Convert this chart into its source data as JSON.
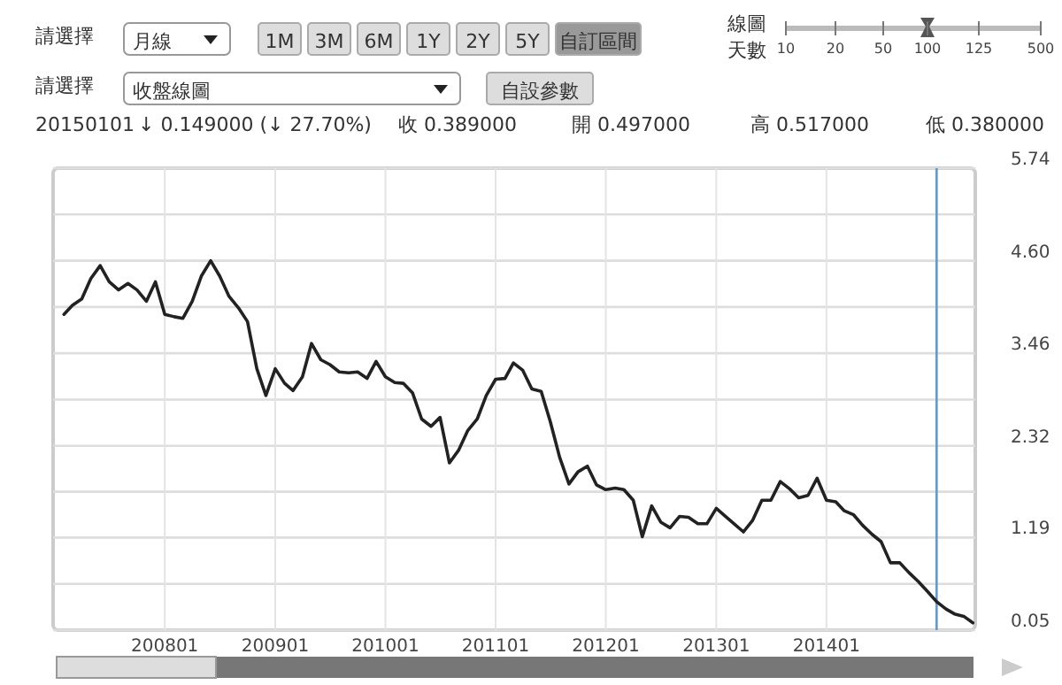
{
  "chart_data": {
    "type": "line",
    "annotations": [
      "請選擇",
      "月線",
      "1M",
      "3M",
      "6M",
      "1Y",
      "2Y",
      "5Y",
      "自訂區間",
      "線圖",
      "天數",
      "10",
      "20",
      "50",
      "100",
      "125",
      "500",
      "請選擇",
      "收盤線圖",
      "自設參數",
      "20150101",
      "↓ 0.149000 (↓ 27.70%)",
      "收 0.389000",
      "開 0.497000",
      "高 0.517000",
      "低 0.380000"
    ],
    "x": [
      "2007-02",
      "2007-03",
      "2007-04",
      "2007-05",
      "2007-06",
      "2007-07",
      "2007-08",
      "2007-09",
      "2007-10",
      "2007-11",
      "2007-12",
      "2008-01",
      "2008-02",
      "2008-03",
      "2008-04",
      "2008-05",
      "2008-06",
      "2008-07",
      "2008-08",
      "2008-09",
      "2008-10",
      "2008-11",
      "2008-12",
      "2009-01",
      "2009-02",
      "2009-03",
      "2009-04",
      "2009-05",
      "2009-06",
      "2009-07",
      "2009-08",
      "2009-09",
      "2009-10",
      "2009-11",
      "2009-12",
      "2010-01",
      "2010-02",
      "2010-03",
      "2010-04",
      "2010-05",
      "2010-06",
      "2010-07",
      "2010-08",
      "2010-09",
      "2010-10",
      "2010-11",
      "2010-12",
      "2011-01",
      "2011-02",
      "2011-03",
      "2011-04",
      "2011-05",
      "2011-06",
      "2011-07",
      "2011-08",
      "2011-09",
      "2011-10",
      "2011-11",
      "2011-12",
      "2012-01",
      "2012-02",
      "2012-03",
      "2012-04",
      "2012-05",
      "2012-06",
      "2012-07",
      "2012-08",
      "2012-09",
      "2012-10",
      "2012-11",
      "2012-12",
      "2013-01",
      "2013-02",
      "2013-03",
      "2013-04",
      "2013-05",
      "2013-06",
      "2013-07",
      "2013-08",
      "2013-09",
      "2013-10",
      "2013-11",
      "2013-12",
      "2014-01",
      "2014-02",
      "2014-03",
      "2014-04",
      "2014-05",
      "2014-06",
      "2014-07",
      "2014-08",
      "2014-09",
      "2014-10",
      "2014-11",
      "2014-12",
      "2015-01",
      "2015-02",
      "2015-03",
      "2015-04",
      "2015-05"
    ],
    "series": [
      {
        "color": "#222222",
        "values": [
          3.94,
          4.05,
          4.13,
          4.38,
          4.54,
          4.34,
          4.24,
          4.32,
          4.24,
          4.1,
          4.34,
          3.94,
          3.91,
          3.89,
          4.1,
          4.41,
          4.6,
          4.41,
          4.16,
          4.02,
          3.85,
          3.27,
          2.94,
          3.27,
          3.09,
          3.0,
          3.17,
          3.58,
          3.38,
          3.32,
          3.23,
          3.22,
          3.23,
          3.15,
          3.36,
          3.17,
          3.1,
          3.09,
          2.97,
          2.65,
          2.56,
          2.67,
          2.11,
          2.27,
          2.51,
          2.65,
          2.94,
          3.14,
          3.15,
          3.34,
          3.25,
          3.02,
          2.99,
          2.62,
          2.18,
          1.85,
          2.0,
          2.07,
          1.84,
          1.78,
          1.8,
          1.78,
          1.65,
          1.2,
          1.58,
          1.38,
          1.31,
          1.45,
          1.44,
          1.36,
          1.36,
          1.55,
          1.45,
          1.36,
          1.26,
          1.4,
          1.65,
          1.65,
          1.88,
          1.79,
          1.68,
          1.71,
          1.92,
          1.65,
          1.63,
          1.52,
          1.47,
          1.34,
          1.23,
          1.14,
          0.88,
          0.88,
          0.76,
          0.65,
          0.53,
          0.4,
          0.31,
          0.25,
          0.22,
          0.14
        ]
      }
    ],
    "xlim": [
      "2006-12-27",
      "2015-05-09"
    ],
    "xticks": [
      {
        "value": "2008-01",
        "label": "200801"
      },
      {
        "value": "2009-01",
        "label": "200901"
      },
      {
        "value": "2010-01",
        "label": "201001"
      },
      {
        "value": "2011-01",
        "label": "201101"
      },
      {
        "value": "2012-01",
        "label": "201201"
      },
      {
        "value": "2013-01",
        "label": "201301"
      },
      {
        "value": "2014-01",
        "label": "201401"
      }
    ],
    "ylim": [
      0.05,
      5.74
    ],
    "yticks": [
      0.05,
      {
        "value": 0.62,
        "label": null
      },
      1.19,
      {
        "value": 1.755,
        "label": null
      },
      2.32,
      {
        "value": 2.89,
        "label": null
      },
      3.46,
      {
        "value": 4.03,
        "label": null
      },
      {
        "value": 4.6,
        "label": "4.60"
      },
      {
        "value": 5.17,
        "label": null
      },
      5.74
    ],
    "grid": true,
    "ref_lines": [
      {
        "axis": "x",
        "value": "2015-01",
        "color": "#5b9bd5"
      }
    ]
  }
}
